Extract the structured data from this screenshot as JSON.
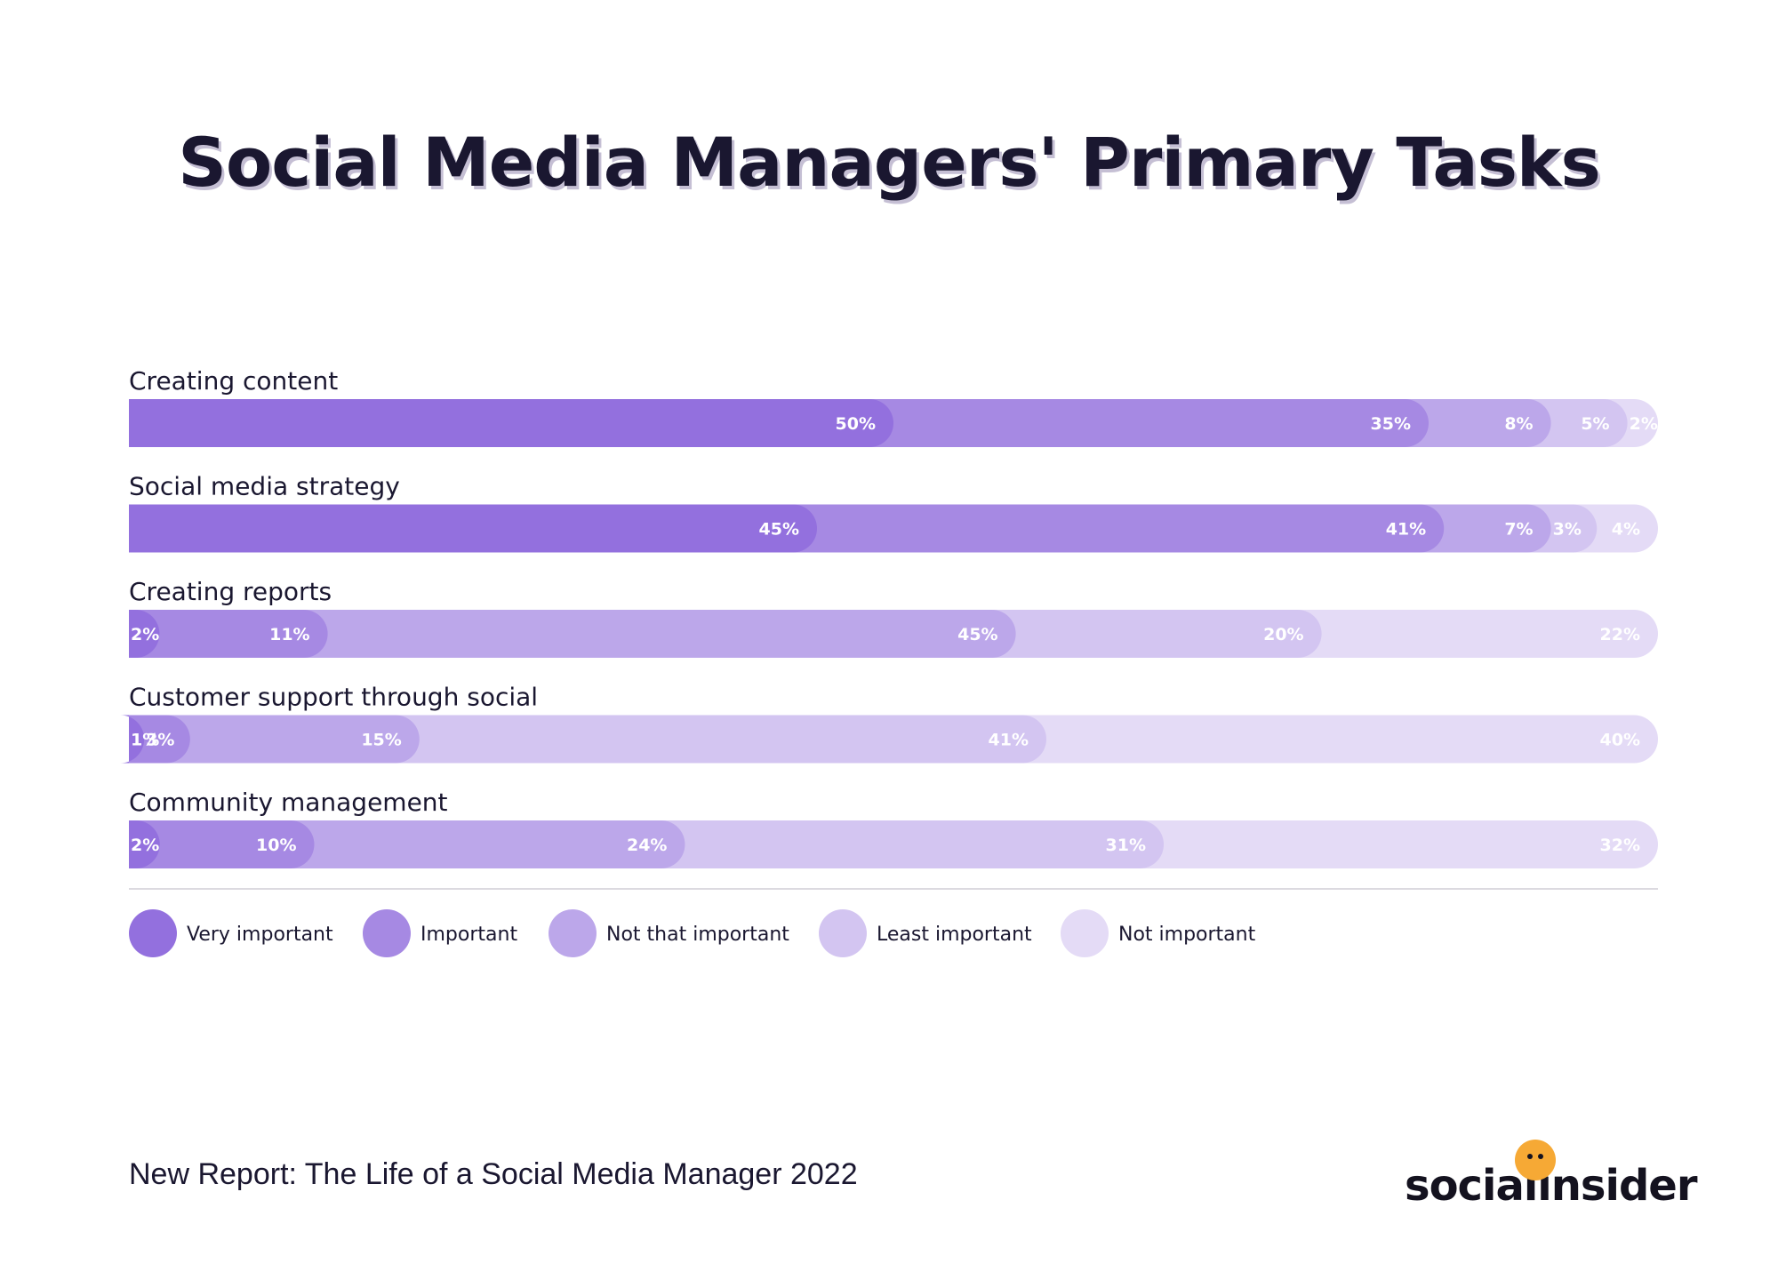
{
  "title": "Social Media Managers' Primary Tasks",
  "footer": "New Report: The Life of a Social Media Manager 2022",
  "brand": {
    "text": "socialinsider",
    "icon": "smiley-dot-icon",
    "accent": "#f6a935"
  },
  "chart_data": {
    "type": "bar",
    "orientation": "horizontal",
    "stacked": true,
    "normalized": true,
    "categories": [
      "Creating content",
      "Social media strategy",
      "Creating reports",
      "Customer support through social",
      "Community management"
    ],
    "series": [
      {
        "name": "Very important",
        "color": "#9370de",
        "values": [
          50,
          45,
          2,
          1,
          2
        ]
      },
      {
        "name": "Important",
        "color": "#a689e3",
        "values": [
          35,
          41,
          11,
          3,
          10
        ]
      },
      {
        "name": "Not that important",
        "color": "#bca7ea",
        "values": [
          8,
          7,
          45,
          15,
          24
        ]
      },
      {
        "name": "Least important",
        "color": "#d3c5f1",
        "values": [
          5,
          3,
          20,
          41,
          31
        ]
      },
      {
        "name": "Not important",
        "color": "#e4dbf6",
        "values": [
          2,
          4,
          22,
          40,
          32
        ]
      }
    ],
    "value_suffix": "%",
    "legend_position": "bottom-left",
    "grid": false
  }
}
